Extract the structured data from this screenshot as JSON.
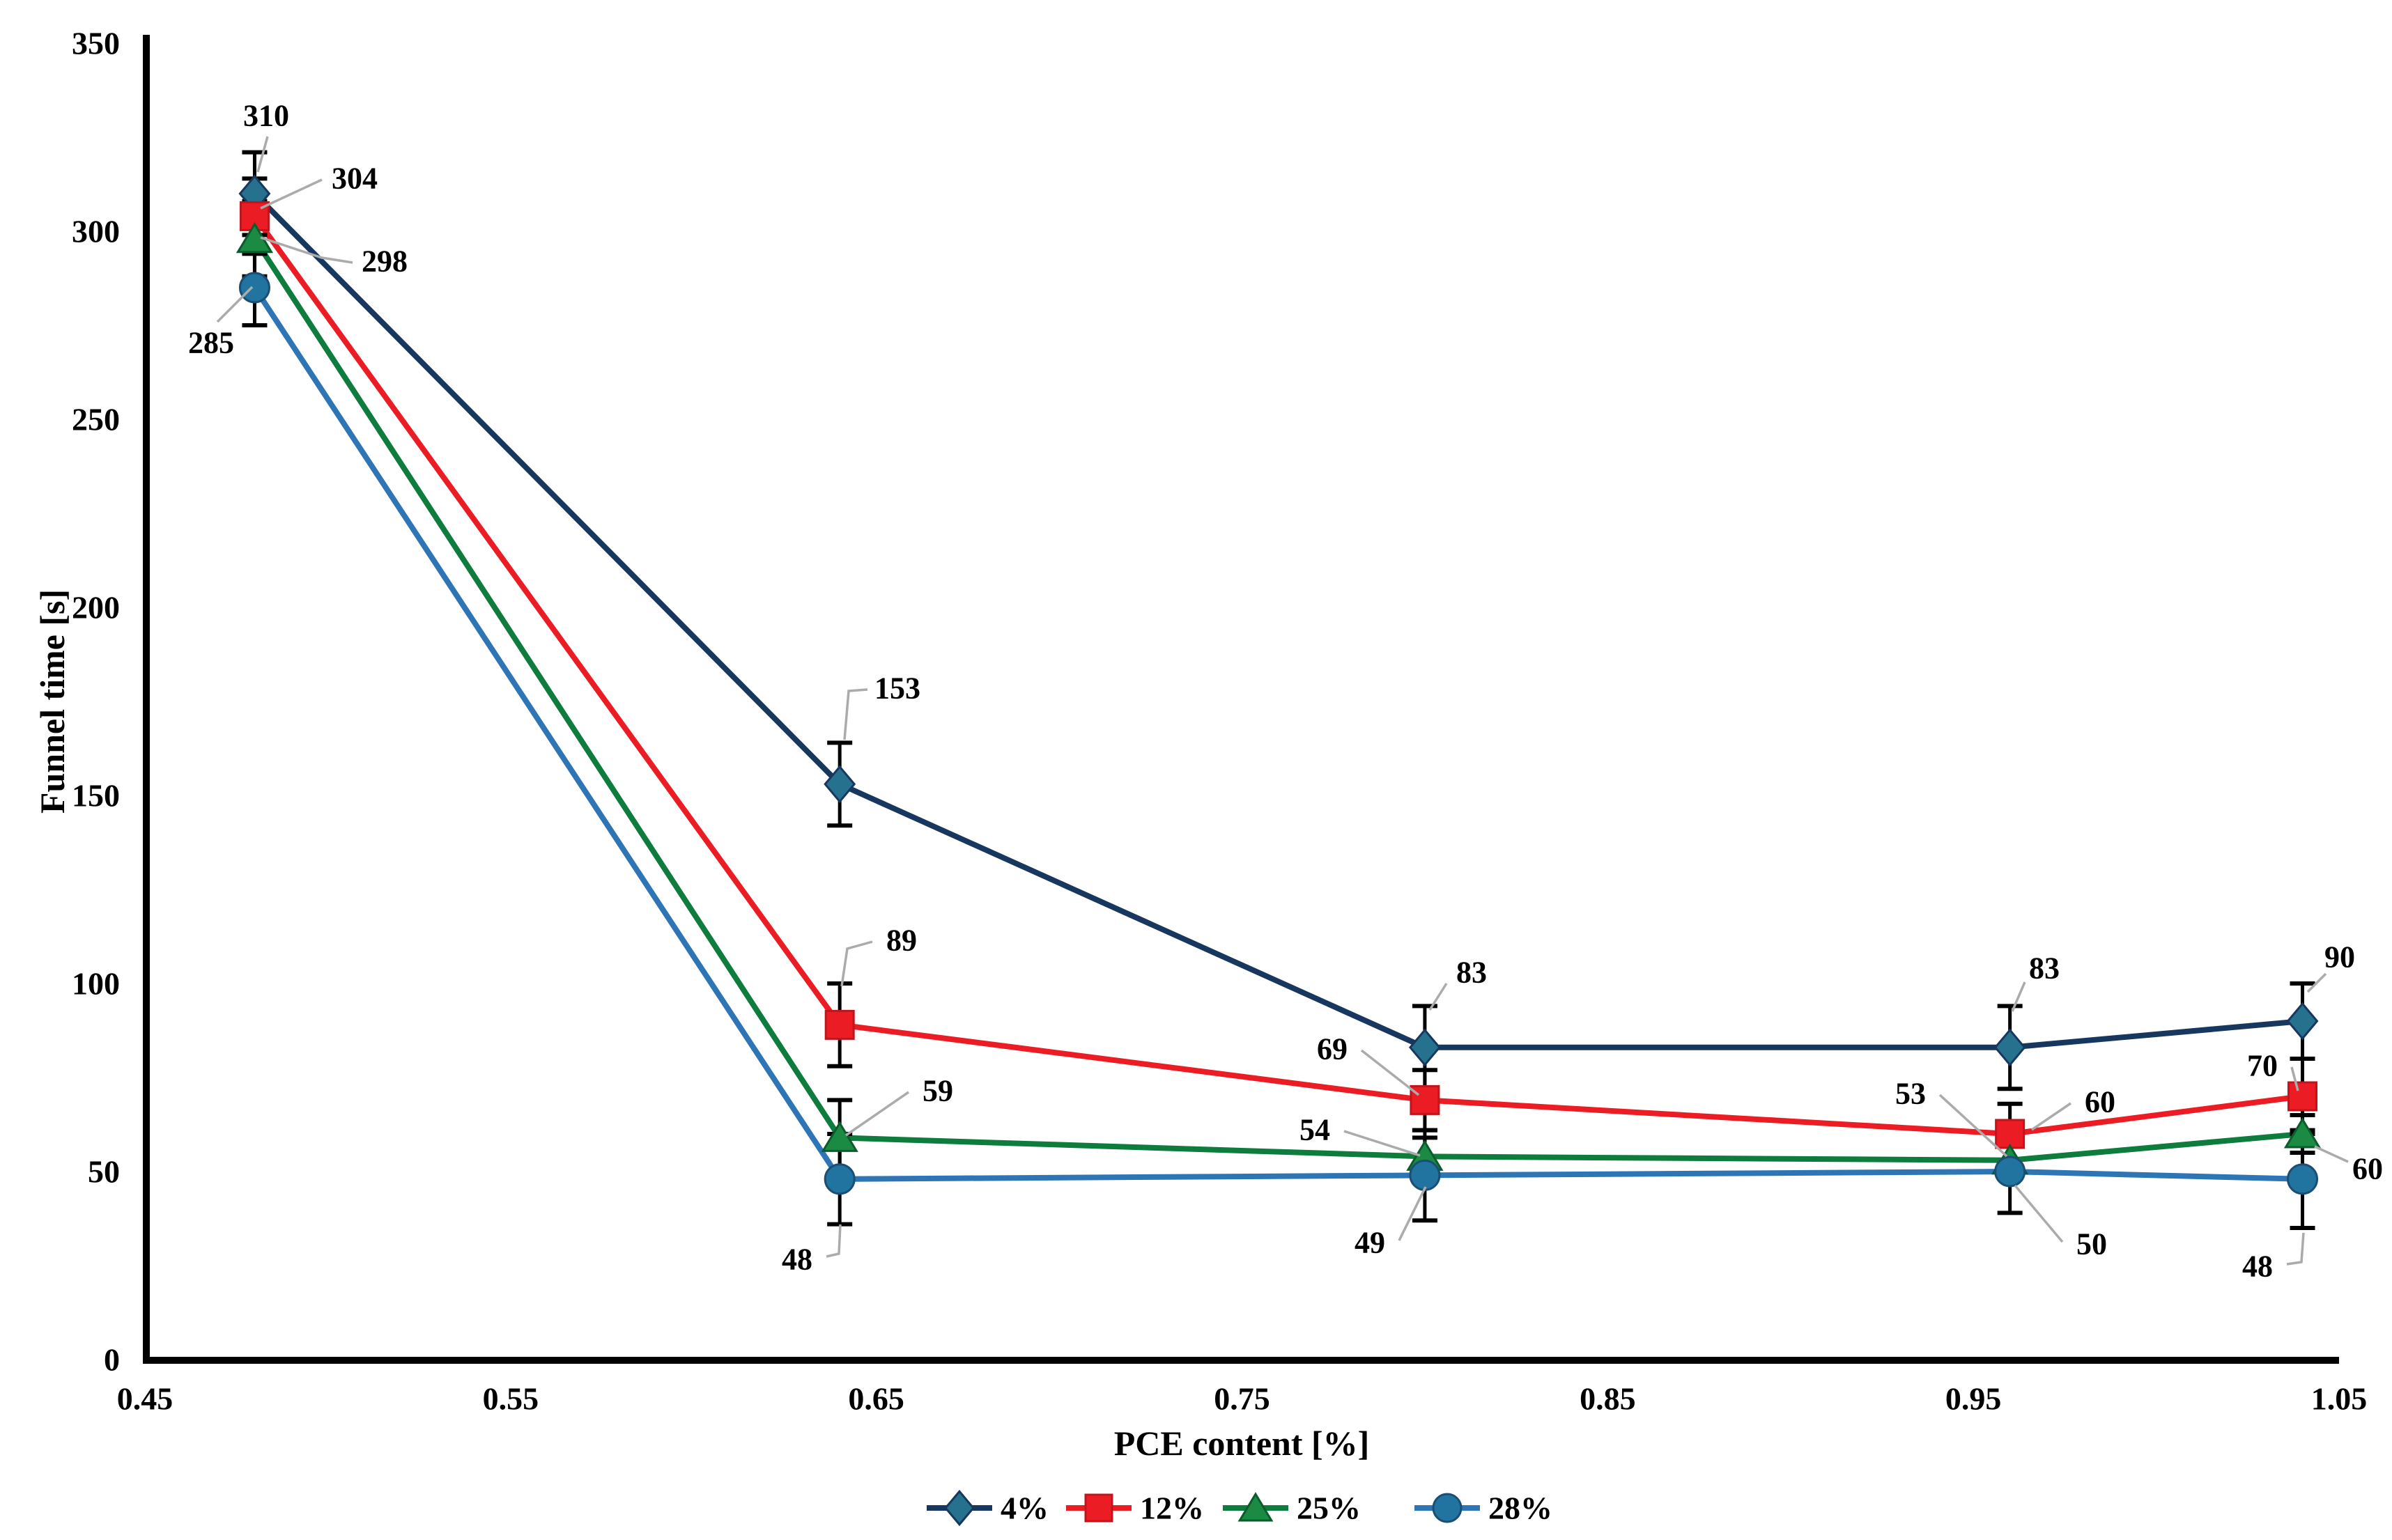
{
  "chart_data": {
    "type": "line",
    "title": "",
    "xlabel": "PCE content [%]",
    "ylabel": "Funnel time [s]",
    "xlim": [
      0.45,
      1.05
    ],
    "ylim": [
      0,
      350
    ],
    "x_ticks": [
      "0.45",
      "0.55",
      "0.65",
      "0.75",
      "0.85",
      "0.95",
      "1.05"
    ],
    "y_ticks": [
      "0",
      "50",
      "100",
      "150",
      "200",
      "250",
      "300",
      "350"
    ],
    "grid": false,
    "legend_position": "bottom",
    "x": [
      0.48,
      0.64,
      0.8,
      0.96,
      1.04
    ],
    "series": [
      {
        "name": "4%",
        "marker": "diamond",
        "line_color": "#17375E",
        "marker_fill": "#26718E",
        "marker_stroke": "#17375E",
        "values": [
          310,
          153,
          83,
          83,
          90
        ],
        "errors": [
          11,
          11,
          11,
          11,
          10
        ]
      },
      {
        "name": "12%",
        "marker": "square",
        "line_color": "#EC1C24",
        "marker_fill": "#EC1C24",
        "marker_stroke": "#C0151B",
        "values": [
          304,
          89,
          69,
          60,
          70
        ],
        "errors": [
          10,
          11,
          8,
          8,
          10
        ]
      },
      {
        "name": "25%",
        "marker": "triangle",
        "line_color": "#0E7C3C",
        "marker_fill": "#1B8A43",
        "marker_stroke": "#0A5C2C",
        "values": [
          298,
          59,
          54,
          53,
          60
        ],
        "errors": [
          10,
          10,
          5,
          5,
          5
        ]
      },
      {
        "name": "28%",
        "marker": "circle",
        "line_color": "#2E75B6",
        "marker_fill": "#2173A0",
        "marker_stroke": "#1A4E74",
        "values": [
          285,
          48,
          49,
          50,
          48
        ],
        "errors": [
          10,
          12,
          12,
          11,
          13
        ]
      }
    ],
    "colors": {
      "axis": "#000000",
      "error_bar": "#000000",
      "leader_line": "#ABABAB",
      "background": "#FFFFFF"
    }
  }
}
